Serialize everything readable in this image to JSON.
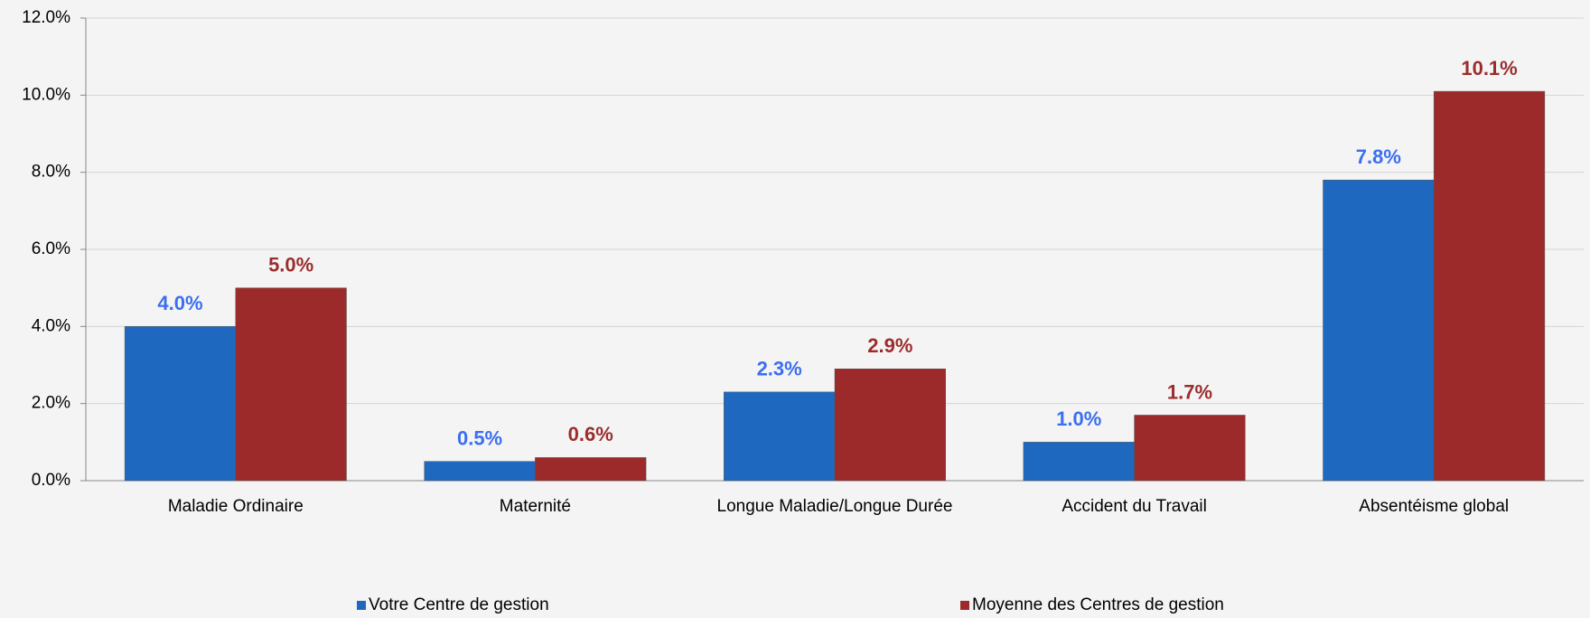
{
  "chart_data": {
    "type": "bar",
    "categories": [
      "Maladie Ordinaire",
      "Maternité",
      "Longue Maladie/Longue Durée",
      "Accident du Travail",
      "Absentéisme global"
    ],
    "series": [
      {
        "name": "Votre Centre de gestion",
        "color": "#1f68c0",
        "label_color": "#3b6ef0",
        "values": [
          4.0,
          0.5,
          2.3,
          1.0,
          7.8
        ],
        "value_labels": [
          "4.0%",
          "0.5%",
          "2.3%",
          "1.0%",
          "7.8%"
        ]
      },
      {
        "name": "Moyenne des Centres de gestion",
        "color": "#9c2a2a",
        "label_color": "#9b2d2d",
        "values": [
          5.0,
          0.6,
          2.9,
          1.7,
          10.1
        ],
        "value_labels": [
          "5.0%",
          "0.6%",
          "2.9%",
          "1.7%",
          "10.1%"
        ]
      }
    ],
    "ylim": [
      0,
      12
    ],
    "yticks": [
      {
        "value": 0,
        "label": "0.0%"
      },
      {
        "value": 2,
        "label": "2.0%"
      },
      {
        "value": 4,
        "label": "4.0%"
      },
      {
        "value": 6,
        "label": "6.0%"
      },
      {
        "value": 8,
        "label": "8.0%"
      },
      {
        "value": 10,
        "label": "10.0%"
      },
      {
        "value": 12,
        "label": "12.0%"
      }
    ],
    "grid": true,
    "legend": "bottom"
  }
}
